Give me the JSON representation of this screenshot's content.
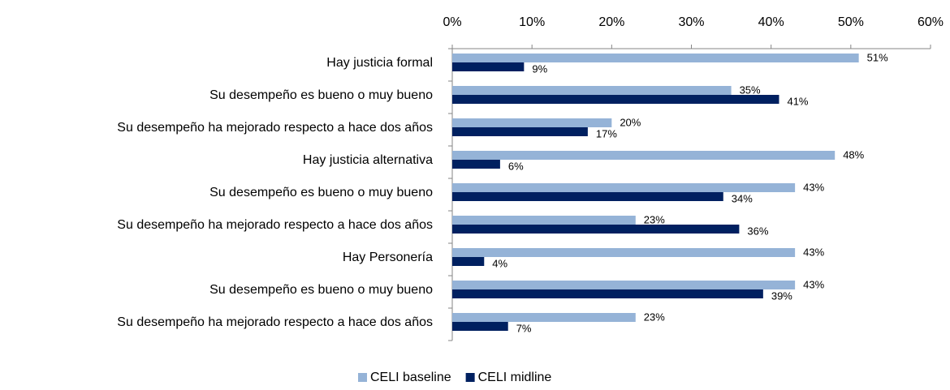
{
  "chart_data": {
    "type": "barh",
    "categories": [
      "Hay justicia formal",
      "Su desempeño es bueno o muy bueno",
      "Su desempeño ha mejorado respecto a hace dos años",
      "Hay justicia alternativa",
      "Su desempeño es bueno o muy bueno",
      "Su desempeño ha mejorado respecto a hace dos años",
      "Hay Personería",
      "Su desempeño es bueno o muy bueno",
      "Su desempeño ha mejorado respecto a hace dos años"
    ],
    "series": [
      {
        "name": "CELI baseline",
        "color": "#95b3d7",
        "values": [
          51,
          35,
          20,
          48,
          43,
          23,
          43,
          43,
          23
        ],
        "value_labels": [
          "51%",
          "35%",
          "20%",
          "48%",
          "43%",
          "23%",
          "43%",
          "43%",
          "23%"
        ]
      },
      {
        "name": "CELI midline",
        "color": "#002060",
        "values": [
          9,
          41,
          17,
          6,
          34,
          36,
          4,
          39,
          7
        ],
        "value_labels": [
          "9%",
          "41%",
          "17%",
          "6%",
          "34%",
          "36%",
          "4%",
          "39%",
          "7%"
        ]
      }
    ],
    "xlim": [
      0,
      60
    ],
    "xticks": [
      {
        "value": 0,
        "label": "0%"
      },
      {
        "value": 10,
        "label": "10%"
      },
      {
        "value": 20,
        "label": "20%"
      },
      {
        "value": 30,
        "label": "30%"
      },
      {
        "value": 40,
        "label": "40%"
      },
      {
        "value": 50,
        "label": "50%"
      },
      {
        "value": 60,
        "label": "60%"
      }
    ],
    "legend": "bottom",
    "grid": false
  }
}
